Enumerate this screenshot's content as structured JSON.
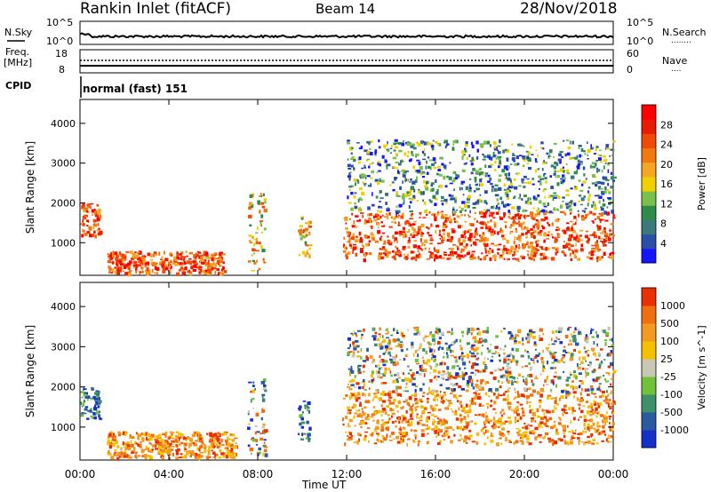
{
  "header": {
    "station": "Rankin Inlet (fitACF)",
    "beam": "Beam 14",
    "date": "28/Nov/2018"
  },
  "panels": {
    "nsky": {
      "left_label": "N.Sky",
      "left_ticks": [
        "10^5",
        "10^0"
      ],
      "right_ticks": [
        "10^5",
        "10^0"
      ],
      "right_label": "N.Search",
      "right_legend_symbol": "........"
    },
    "freq": {
      "left_label_1": "Freq.",
      "left_label_2": "[MHz]",
      "left_ticks": [
        "18",
        "8"
      ],
      "right_ticks": [
        "60",
        "0"
      ],
      "right_label": "Nave",
      "right_legend_symbol": "...."
    },
    "cpid": {
      "label": "CPID",
      "value": "normal (fast) 151"
    }
  },
  "chart_data": [
    {
      "type": "heatmap",
      "name": "power",
      "ylabel": "Slant Range [km]",
      "xlabel": "Time UT",
      "x_tick_labels": [
        "00:00",
        "04:00",
        "08:00",
        "12:00",
        "16:00",
        "20:00",
        "00:00"
      ],
      "x_hours": [
        0,
        4,
        8,
        12,
        16,
        20,
        24
      ],
      "y_ticks": [
        1000,
        2000,
        3000,
        4000
      ],
      "ylim": [
        180,
        4600
      ],
      "colorbar": {
        "label": "Power [dB]",
        "tick_labels": [
          "4",
          "8",
          "12",
          "16",
          "20",
          "24",
          "28"
        ],
        "colors": [
          "#1414ff",
          "#2a4fa8",
          "#3b7a7a",
          "#2e8b4a",
          "#7ac04a",
          "#f0d000",
          "#f5a623",
          "#f07a10",
          "#f04a08",
          "#e81c00",
          "#ff0000"
        ]
      },
      "echo_bands": [
        {
          "t_start": 0.0,
          "t_end": 0.9,
          "r_low": 1200,
          "r_high": 2000,
          "level": "high"
        },
        {
          "t_start": 1.2,
          "t_end": 6.5,
          "r_low": 250,
          "r_high": 800,
          "level": "high"
        },
        {
          "t_start": 7.5,
          "t_end": 8.3,
          "r_low": 300,
          "r_high": 2300,
          "level": "medium"
        },
        {
          "t_start": 9.8,
          "t_end": 10.3,
          "r_low": 700,
          "r_high": 1700,
          "level": "medium"
        },
        {
          "t_start": 11.8,
          "t_end": 24.0,
          "r_low": 600,
          "r_high": 1800,
          "level": "high"
        },
        {
          "t_start": 12.0,
          "t_end": 24.0,
          "r_low": 1800,
          "r_high": 3600,
          "level": "low"
        }
      ]
    },
    {
      "type": "heatmap",
      "name": "velocity",
      "ylabel": "Slant Range [km]",
      "xlabel": "Time UT",
      "x_tick_labels": [
        "00:00",
        "04:00",
        "08:00",
        "12:00",
        "16:00",
        "20:00",
        "00:00"
      ],
      "x_hours": [
        0,
        4,
        8,
        12,
        16,
        20,
        24
      ],
      "y_ticks": [
        1000,
        2000,
        3000,
        4000
      ],
      "ylim": [
        180,
        4600
      ],
      "colorbar": {
        "label": "Velocity [m s^-1]",
        "tick_labels": [
          "1000",
          "500",
          "100",
          "25",
          "-25",
          "-100",
          "-500",
          "-1000"
        ],
        "colors": [
          "#1430c8",
          "#2a5aa0",
          "#3f8f6a",
          "#6fc23a",
          "#c8c8b4",
          "#f5c000",
          "#f59a20",
          "#f07010",
          "#e83000"
        ]
      },
      "echo_bands": [
        {
          "t_start": 0.0,
          "t_end": 0.9,
          "r_low": 1200,
          "r_high": 2000,
          "level": "toward"
        },
        {
          "t_start": 1.2,
          "t_end": 7.0,
          "r_low": 250,
          "r_high": 900,
          "level": "away"
        },
        {
          "t_start": 7.5,
          "t_end": 8.3,
          "r_low": 300,
          "r_high": 2300,
          "level": "mixed"
        },
        {
          "t_start": 9.8,
          "t_end": 10.3,
          "r_low": 700,
          "r_high": 1700,
          "level": "toward"
        },
        {
          "t_start": 11.8,
          "t_end": 24.0,
          "r_low": 600,
          "r_high": 1900,
          "level": "away"
        },
        {
          "t_start": 12.0,
          "t_end": 24.0,
          "r_low": 1900,
          "r_high": 3500,
          "level": "mixed"
        }
      ]
    }
  ],
  "colors": {
    "axis": "#000000",
    "background": "#ffffff"
  }
}
